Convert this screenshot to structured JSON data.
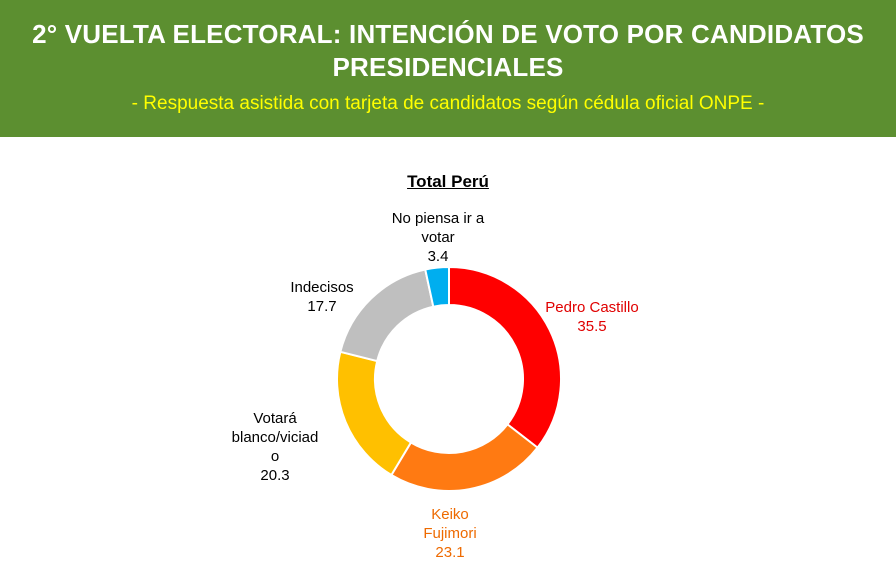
{
  "header": {
    "title_line1": "2° VUELTA ELECTORAL: INTENCIÓN DE VOTO POR CANDIDATOS",
    "title_line2": "PRESIDENCIALES",
    "subtitle": "- Respuesta asistida con tarjeta de candidatos según cédula oficial ONPE -"
  },
  "colors": {
    "banner": "#5c8f30",
    "subtitle": "#ffff00",
    "castillo": "#ff0000",
    "fujimori": "#ff7a12",
    "blanco": "#ffc000",
    "indecisos": "#bfbfbf",
    "no_votar": "#00aeef"
  },
  "chart_data": {
    "type": "pie",
    "style": "donut",
    "title": "Total Perú",
    "slices": [
      {
        "label_lines": [
          "Pedro Castillo"
        ],
        "value": 35.5,
        "value_text": "35.5",
        "color": "#ff0000",
        "label_color": "#e00000"
      },
      {
        "label_lines": [
          "Keiko",
          "Fujimori"
        ],
        "value": 23.1,
        "value_text": "23.1",
        "color": "#ff7a12",
        "label_color": "#ee6a00"
      },
      {
        "label_lines": [
          "Votará",
          "blanco/viciad",
          "o"
        ],
        "value": 20.3,
        "value_text": "20.3",
        "color": "#ffc000",
        "label_color": "#000000"
      },
      {
        "label_lines": [
          "Indecisos"
        ],
        "value": 17.7,
        "value_text": "17.7",
        "color": "#bfbfbf",
        "label_color": "#000000"
      },
      {
        "label_lines": [
          "No piensa ir a",
          "votar"
        ],
        "value": 3.4,
        "value_text": "3.4",
        "color": "#00aeef",
        "label_color": "#000000"
      }
    ]
  }
}
